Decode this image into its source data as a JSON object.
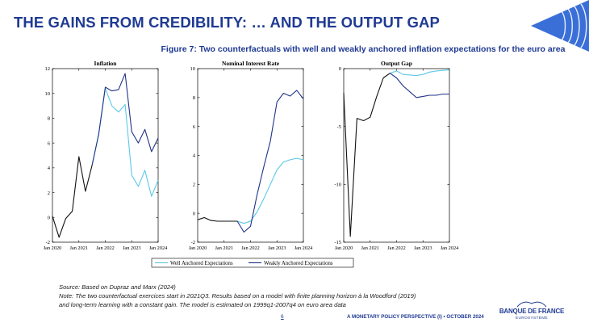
{
  "slide": {
    "title": "THE GAINS FROM CREDIBILITY: … AND THE OUTPUT GAP",
    "figure_title": "Figure 7: Two counterfactuals with well and weakly anchored inflation expectations for the euro area"
  },
  "footnotes": {
    "source": "Source: Based on Dupraz and Marx (2024)",
    "note_line1": "Note: The two counterfactual exercices start in 2021Q3. Results based on a model with finite planning horizon à la Woodford (2019)",
    "note_line2": "and long-term learning  with a constant gain. The model is estimated on 1999q1-2007q4 on euro area data"
  },
  "footer": {
    "page_number": "6",
    "presentation": "A MONETARY POLICY PERSPECTIVE (I) • OCTOBER 2024",
    "logo_name": "BANQUE DE FRANCE",
    "logo_sub": "EUROSYSTÈME"
  },
  "legend": {
    "well": "Well Anchored Expectations",
    "weak": "Weakly Anchored Expectations"
  },
  "colors": {
    "title_blue": "#1f3a93",
    "history": "#111111",
    "well_anchored": "#5bc8e6",
    "weakly_anchored": "#1f3388"
  },
  "chart_data": [
    {
      "type": "line",
      "title": "Inflation",
      "xlabel": "",
      "ylabel": "",
      "xlim": [
        2020.0,
        2024.0
      ],
      "ylim": [
        -2,
        12
      ],
      "yticks": [
        -2,
        0,
        2,
        4,
        6,
        8,
        10,
        12
      ],
      "xticks": [
        "Jan 2020",
        "Jan 2021",
        "Jan 2022",
        "Jan 2023",
        "Jan 2024"
      ],
      "grid": false,
      "series": [
        {
          "key": "history",
          "x": [
            2020.0,
            2020.25,
            2020.5,
            2020.75,
            2021.0,
            2021.25,
            2021.5
          ],
          "y": [
            0.1,
            -1.6,
            -0.1,
            0.5,
            4.9,
            2.1,
            4.2
          ]
        },
        {
          "key": "well",
          "name": "Well Anchored Expectations",
          "x": [
            2021.5,
            2021.75,
            2022.0,
            2022.25,
            2022.5,
            2022.75,
            2023.0,
            2023.25,
            2023.5,
            2023.75,
            2024.0
          ],
          "y": [
            4.2,
            6.7,
            10.4,
            9.0,
            8.5,
            9.1,
            3.4,
            2.5,
            3.8,
            1.7,
            3.0
          ]
        },
        {
          "key": "weak",
          "name": "Weakly Anchored Expectations",
          "x": [
            2021.5,
            2021.75,
            2022.0,
            2022.25,
            2022.5,
            2022.75,
            2023.0,
            2023.25,
            2023.5,
            2023.75,
            2024.0
          ],
          "y": [
            4.2,
            6.7,
            10.5,
            10.2,
            10.3,
            11.6,
            6.9,
            6.0,
            7.1,
            5.3,
            6.4
          ]
        }
      ]
    },
    {
      "type": "line",
      "title": "Nominal Interest Rate",
      "xlabel": "",
      "ylabel": "",
      "xlim": [
        2020.0,
        2024.0
      ],
      "ylim": [
        -2,
        10
      ],
      "yticks": [
        -2,
        0,
        2,
        4,
        6,
        8,
        10
      ],
      "xticks": [
        "Jan 2020",
        "Jan 2021",
        "Jan 2022",
        "Jan 2023",
        "Jan 2024"
      ],
      "grid": false,
      "series": [
        {
          "key": "history",
          "x": [
            2020.0,
            2020.25,
            2020.5,
            2020.75,
            2021.0,
            2021.25,
            2021.5
          ],
          "y": [
            -0.45,
            -0.3,
            -0.5,
            -0.55,
            -0.55,
            -0.55,
            -0.55
          ]
        },
        {
          "key": "well",
          "name": "Well Anchored Expectations",
          "x": [
            2021.5,
            2021.75,
            2022.0,
            2022.25,
            2022.5,
            2022.75,
            2023.0,
            2023.25,
            2023.5,
            2023.75,
            2024.0
          ],
          "y": [
            -0.55,
            -0.7,
            -0.55,
            0.1,
            1.0,
            2.0,
            3.0,
            3.55,
            3.7,
            3.8,
            3.7
          ]
        },
        {
          "key": "weak",
          "name": "Weakly Anchored Expectations",
          "x": [
            2021.5,
            2021.75,
            2022.0,
            2022.25,
            2022.5,
            2022.75,
            2023.0,
            2023.25,
            2023.5,
            2023.75,
            2024.0
          ],
          "y": [
            -0.55,
            -1.3,
            -0.9,
            1.3,
            3.2,
            5.0,
            7.7,
            8.3,
            8.1,
            8.5,
            7.9
          ]
        }
      ]
    },
    {
      "type": "line",
      "title": "Output Gap",
      "xlabel": "",
      "ylabel": "",
      "xlim": [
        2020.0,
        2024.0
      ],
      "ylim": [
        -15,
        0
      ],
      "yticks": [
        -15,
        -10,
        -5,
        0
      ],
      "xticks": [
        "Jan 2020",
        "Jan 2021",
        "Jan 2022",
        "Jan 2023",
        "Jan 2024"
      ],
      "grid": false,
      "series": [
        {
          "key": "history",
          "x": [
            2020.0,
            2020.25,
            2020.5,
            2020.75,
            2021.0,
            2021.25,
            2021.5,
            2021.75
          ],
          "y": [
            -2.1,
            -14.5,
            -4.3,
            -4.5,
            -4.2,
            -2.4,
            -0.8,
            -0.4
          ]
        },
        {
          "key": "well",
          "name": "Well Anchored Expectations",
          "x": [
            2021.75,
            2022.0,
            2022.25,
            2022.5,
            2022.75,
            2023.0,
            2023.25,
            2023.5,
            2023.75,
            2024.0
          ],
          "y": [
            -0.4,
            -0.2,
            -0.5,
            -0.55,
            -0.6,
            -0.5,
            -0.3,
            -0.2,
            -0.15,
            -0.1
          ]
        },
        {
          "key": "weak",
          "name": "Weakly Anchored Expectations",
          "x": [
            2021.75,
            2022.0,
            2022.25,
            2022.5,
            2022.75,
            2023.0,
            2023.25,
            2023.5,
            2023.75,
            2024.0
          ],
          "y": [
            -0.4,
            -0.8,
            -1.5,
            -2.0,
            -2.5,
            -2.4,
            -2.3,
            -2.3,
            -2.2,
            -2.2
          ]
        }
      ]
    }
  ]
}
